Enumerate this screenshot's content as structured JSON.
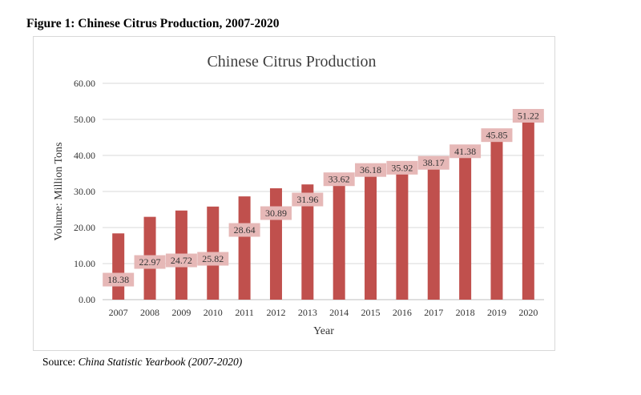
{
  "figure_caption": "Figure 1: Chinese Citrus Production, 2007-2020",
  "source_prefix": "Source: ",
  "source_text": "China Statistic Yearbook (2007-2020)",
  "chart_data": {
    "type": "bar",
    "title": "Chinese Citrus Production",
    "xlabel": "Year",
    "ylabel": "Volume: Million Tons",
    "categories": [
      "2007",
      "2008",
      "2009",
      "2010",
      "2011",
      "2012",
      "2013",
      "2014",
      "2015",
      "2016",
      "2017",
      "2018",
      "2019",
      "2020"
    ],
    "values": [
      18.38,
      22.97,
      24.72,
      25.82,
      28.64,
      30.89,
      31.96,
      33.62,
      36.18,
      35.92,
      38.17,
      41.38,
      45.85,
      51.22
    ],
    "data_labels": [
      "18.38",
      "22.97",
      "24.72",
      "25.82",
      "28.64",
      "30.89",
      "31.96",
      "33.62",
      "36.18",
      "35.92",
      "38.17",
      "41.38",
      "45.85",
      "51.22"
    ],
    "ylim": [
      0,
      60
    ],
    "yticks": [
      "0.00",
      "10.00",
      "20.00",
      "30.00",
      "40.00",
      "50.00",
      "60.00"
    ],
    "grid": true,
    "legend": "none",
    "colors": {
      "bar": "#c0504d",
      "label_bg": "#e6b8b7",
      "grid": "#d9d9d9",
      "axis": "#bfbfbf"
    }
  }
}
